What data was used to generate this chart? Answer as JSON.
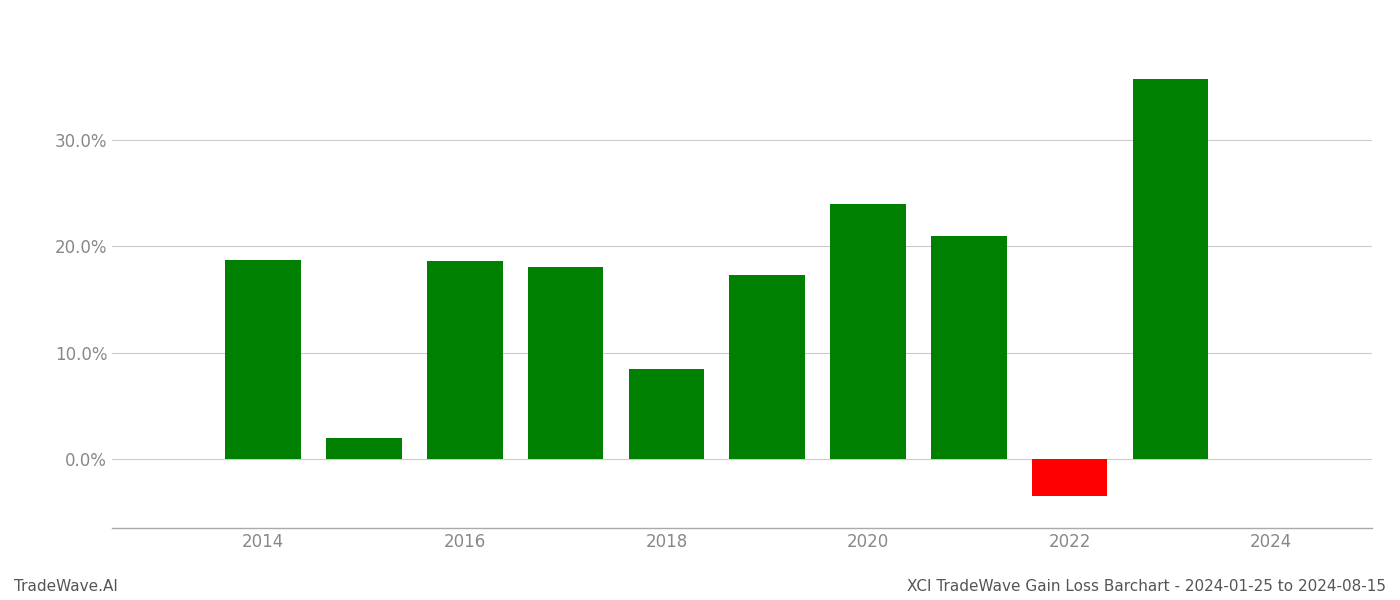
{
  "years": [
    2014,
    2015,
    2016,
    2017,
    2018,
    2019,
    2020,
    2021,
    2022,
    2023
  ],
  "values": [
    0.187,
    0.02,
    0.186,
    0.181,
    0.085,
    0.173,
    0.24,
    0.21,
    -0.035,
    0.358
  ],
  "bar_colors": [
    "#008000",
    "#008000",
    "#008000",
    "#008000",
    "#008000",
    "#008000",
    "#008000",
    "#008000",
    "#ff0000",
    "#008000"
  ],
  "bar_width": 0.75,
  "xlim": [
    2012.5,
    2025.0
  ],
  "ylim": [
    -0.065,
    0.415
  ],
  "yticks": [
    0.0,
    0.1,
    0.2,
    0.3
  ],
  "xticks": [
    2014,
    2016,
    2018,
    2020,
    2022,
    2024
  ],
  "grid_color": "#cccccc",
  "background_color": "#ffffff",
  "footer_left": "TradeWave.AI",
  "footer_right": "XCI TradeWave Gain Loss Barchart - 2024-01-25 to 2024-08-15",
  "footer_fontsize": 11,
  "tick_fontsize": 12,
  "spine_color": "#aaaaaa",
  "tick_color": "#888888"
}
